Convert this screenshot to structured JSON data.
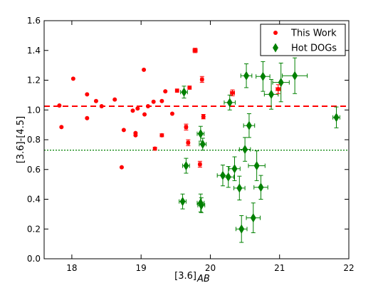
{
  "chart_data": {
    "type": "scatter",
    "xlabel": "[3.6]",
    "xlabel_sub": "AB",
    "ylabel": "[3.6]-[4.5]",
    "xlim": [
      17.6,
      22.0
    ],
    "ylim": [
      0.0,
      1.6
    ],
    "xticks": [
      "18",
      "19",
      "20",
      "21",
      "22"
    ],
    "yticks": [
      "0.0",
      "0.2",
      "0.4",
      "0.6",
      "0.8",
      "1.0",
      "1.2",
      "1.4",
      "1.6"
    ],
    "legend_position": "top-right",
    "grid": false,
    "hlines": [
      {
        "y": 1.025,
        "color": "#ff0000",
        "style": "dashed"
      },
      {
        "y": 0.73,
        "color": "#008000",
        "style": "dotted"
      }
    ],
    "series": [
      {
        "name": "This Work",
        "color": "#ff0000",
        "marker": "circle",
        "points": [
          {
            "x": 17.82,
            "y": 1.03,
            "xerr": 0,
            "yerr": 0
          },
          {
            "x": 17.85,
            "y": 0.885,
            "xerr": 0,
            "yerr": 0
          },
          {
            "x": 18.02,
            "y": 1.21,
            "xerr": 0,
            "yerr": 0
          },
          {
            "x": 18.22,
            "y": 1.105,
            "xerr": 0,
            "yerr": 0
          },
          {
            "x": 18.22,
            "y": 0.945,
            "xerr": 0,
            "yerr": 0
          },
          {
            "x": 18.35,
            "y": 1.06,
            "xerr": 0,
            "yerr": 0
          },
          {
            "x": 18.43,
            "y": 1.025,
            "xerr": 0,
            "yerr": 0
          },
          {
            "x": 18.62,
            "y": 1.07,
            "xerr": 0,
            "yerr": 0
          },
          {
            "x": 18.72,
            "y": 0.615,
            "xerr": 0,
            "yerr": 0
          },
          {
            "x": 18.75,
            "y": 0.865,
            "xerr": 0,
            "yerr": 0
          },
          {
            "x": 18.88,
            "y": 0.995,
            "xerr": 0,
            "yerr": 0
          },
          {
            "x": 18.92,
            "y": 0.83,
            "xerr": 0,
            "yerr": 0
          },
          {
            "x": 18.92,
            "y": 0.845,
            "xerr": 0,
            "yerr": 0
          },
          {
            "x": 18.95,
            "y": 1.01,
            "xerr": 0,
            "yerr": 0
          },
          {
            "x": 19.04,
            "y": 1.27,
            "xerr": 0,
            "yerr": 0
          },
          {
            "x": 19.05,
            "y": 0.97,
            "xerr": 0,
            "yerr": 0
          },
          {
            "x": 19.1,
            "y": 1.025,
            "xerr": 0,
            "yerr": 0
          },
          {
            "x": 19.18,
            "y": 1.055,
            "xerr": 0,
            "yerr": 0
          },
          {
            "x": 19.2,
            "y": 0.74,
            "xerr": 0,
            "yerr": 0.01
          },
          {
            "x": 19.3,
            "y": 0.83,
            "xerr": 0,
            "yerr": 0.01
          },
          {
            "x": 19.3,
            "y": 1.06,
            "xerr": 0,
            "yerr": 0
          },
          {
            "x": 19.35,
            "y": 1.125,
            "xerr": 0,
            "yerr": 0
          },
          {
            "x": 19.45,
            "y": 0.975,
            "xerr": 0,
            "yerr": 0
          },
          {
            "x": 19.52,
            "y": 1.13,
            "xerr": 0.02,
            "yerr": 0.01
          },
          {
            "x": 19.65,
            "y": 0.885,
            "xerr": 0.02,
            "yerr": 0.02
          },
          {
            "x": 19.68,
            "y": 0.78,
            "xerr": 0.02,
            "yerr": 0.02
          },
          {
            "x": 19.7,
            "y": 1.15,
            "xerr": 0.02,
            "yerr": 0.01
          },
          {
            "x": 19.78,
            "y": 1.4,
            "xerr": 0.03,
            "yerr": 0.015
          },
          {
            "x": 19.85,
            "y": 0.635,
            "xerr": 0.02,
            "yerr": 0.02
          },
          {
            "x": 19.88,
            "y": 1.205,
            "xerr": 0.02,
            "yerr": 0.02
          },
          {
            "x": 19.9,
            "y": 0.955,
            "xerr": 0.02,
            "yerr": 0.015
          },
          {
            "x": 20.32,
            "y": 1.115,
            "xerr": 0.03,
            "yerr": 0.02
          },
          {
            "x": 20.98,
            "y": 1.14,
            "xerr": 0.03,
            "yerr": 0.03
          }
        ]
      },
      {
        "name": "Hot DOGs",
        "color": "#008000",
        "marker": "diamond",
        "points": [
          {
            "x": 19.62,
            "y": 1.12,
            "xerr": 0.05,
            "yerr": 0.04
          },
          {
            "x": 19.65,
            "y": 0.625,
            "xerr": 0.05,
            "yerr": 0.05
          },
          {
            "x": 19.6,
            "y": 0.385,
            "xerr": 0.05,
            "yerr": 0.05
          },
          {
            "x": 19.86,
            "y": 0.84,
            "xerr": 0.05,
            "yerr": 0.05
          },
          {
            "x": 19.89,
            "y": 0.77,
            "xerr": 0.05,
            "yerr": 0.04
          },
          {
            "x": 19.86,
            "y": 0.375,
            "xerr": 0.05,
            "yerr": 0.06
          },
          {
            "x": 19.87,
            "y": 0.36,
            "xerr": 0.05,
            "yerr": 0.05
          },
          {
            "x": 20.18,
            "y": 0.56,
            "xerr": 0.08,
            "yerr": 0.07
          },
          {
            "x": 20.26,
            "y": 0.55,
            "xerr": 0.08,
            "yerr": 0.07
          },
          {
            "x": 20.28,
            "y": 1.05,
            "xerr": 0.08,
            "yerr": 0.05
          },
          {
            "x": 20.35,
            "y": 0.605,
            "xerr": 0.08,
            "yerr": 0.08
          },
          {
            "x": 20.42,
            "y": 0.475,
            "xerr": 0.08,
            "yerr": 0.08
          },
          {
            "x": 20.45,
            "y": 0.2,
            "xerr": 0.08,
            "yerr": 0.09
          },
          {
            "x": 20.5,
            "y": 0.735,
            "xerr": 0.08,
            "yerr": 0.08
          },
          {
            "x": 20.52,
            "y": 1.23,
            "xerr": 0.08,
            "yerr": 0.08
          },
          {
            "x": 20.56,
            "y": 0.895,
            "xerr": 0.08,
            "yerr": 0.08
          },
          {
            "x": 20.62,
            "y": 0.275,
            "xerr": 0.1,
            "yerr": 0.1
          },
          {
            "x": 20.67,
            "y": 0.625,
            "xerr": 0.12,
            "yerr": 0.1
          },
          {
            "x": 20.73,
            "y": 0.48,
            "xerr": 0.1,
            "yerr": 0.08
          },
          {
            "x": 20.76,
            "y": 1.225,
            "xerr": 0.1,
            "yerr": 0.1
          },
          {
            "x": 20.88,
            "y": 1.105,
            "xerr": 0.1,
            "yerr": 0.1
          },
          {
            "x": 21.02,
            "y": 1.185,
            "xerr": 0.12,
            "yerr": 0.13
          },
          {
            "x": 21.22,
            "y": 1.23,
            "xerr": 0.18,
            "yerr": 0.12
          },
          {
            "x": 21.82,
            "y": 0.95,
            "xerr": 0.05,
            "yerr": 0.07
          }
        ]
      }
    ]
  }
}
